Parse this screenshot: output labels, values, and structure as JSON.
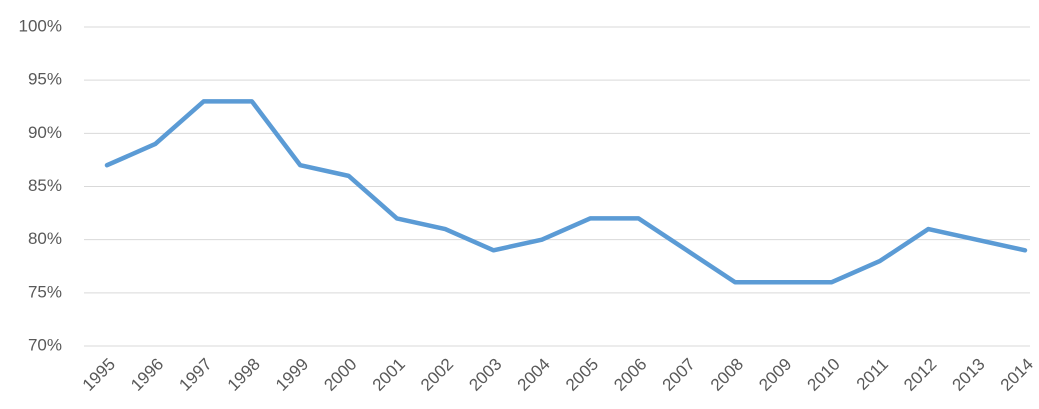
{
  "chart_data": {
    "type": "line",
    "categories": [
      "1995",
      "1996",
      "1997",
      "1998",
      "1999",
      "2000",
      "2001",
      "2002",
      "2003",
      "2004",
      "2005",
      "2006",
      "2007",
      "2008",
      "2009",
      "2010",
      "2011",
      "2012",
      "2013",
      "2014"
    ],
    "values": [
      87,
      89,
      93,
      93,
      87,
      86,
      82,
      81,
      79,
      80,
      82,
      82,
      79,
      76,
      76,
      76,
      78,
      81,
      80,
      79
    ],
    "color": "#5b9bd5",
    "ylim": [
      70,
      100
    ],
    "yticks": [
      {
        "value": 70,
        "label": "70%"
      },
      {
        "value": 75,
        "label": "75%"
      },
      {
        "value": 80,
        "label": "80%"
      },
      {
        "value": 85,
        "label": "85%"
      },
      {
        "value": 90,
        "label": "90%"
      },
      {
        "value": 95,
        "label": "95%"
      },
      {
        "value": 100,
        "label": "100%"
      }
    ],
    "grid": true
  }
}
